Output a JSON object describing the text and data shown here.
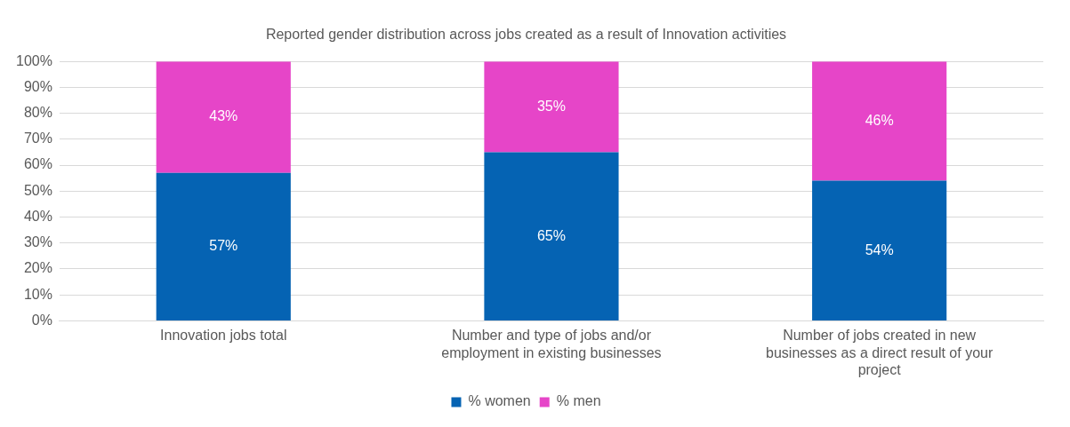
{
  "chart_data": {
    "type": "bar",
    "stacked": true,
    "title": "Reported gender distribution across jobs created as a result of Innovation activities",
    "categories": [
      "Innovation jobs total",
      "Number and type of jobs and/or employment in existing businesses",
      "Number of jobs created in new businesses as a direct result of your project"
    ],
    "series": [
      {
        "name": "% women",
        "color": "#0563b3",
        "values": [
          57,
          65,
          54
        ],
        "value_labels": [
          "57%",
          "65%",
          "54%"
        ]
      },
      {
        "name": "% men",
        "color": "#e645c8",
        "values": [
          43,
          35,
          46
        ],
        "value_labels": [
          "43%",
          "35%",
          "46%"
        ]
      }
    ],
    "ylim": [
      0,
      100
    ],
    "yticks": [
      {
        "value": 0,
        "label": "0%"
      },
      {
        "value": 10,
        "label": "10%"
      },
      {
        "value": 20,
        "label": "20%"
      },
      {
        "value": 30,
        "label": "30%"
      },
      {
        "value": 40,
        "label": "40%"
      },
      {
        "value": 50,
        "label": "50%"
      },
      {
        "value": 60,
        "label": "60%"
      },
      {
        "value": 70,
        "label": "70%"
      },
      {
        "value": 80,
        "label": "80%"
      },
      {
        "value": 90,
        "label": "90%"
      },
      {
        "value": 100,
        "label": "100%"
      }
    ],
    "grid": "y",
    "legend": "bottom"
  }
}
